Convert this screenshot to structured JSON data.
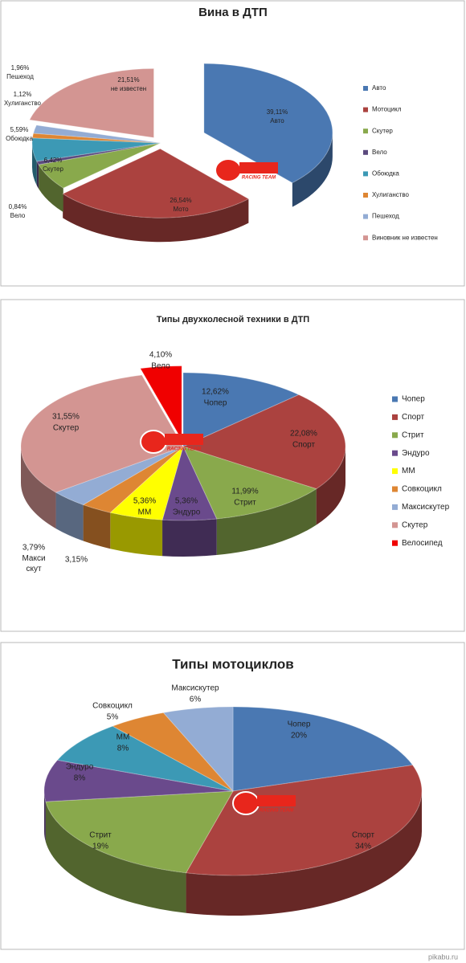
{
  "chart_data": [
    {
      "type": "pie",
      "title": "Вина в ДТП",
      "categories": [
        "Авто",
        "Мотоцикл",
        "Скутер",
        "Вело",
        "Обоюдка",
        "Хулиганство",
        "Пешеход",
        "Виновник не известен"
      ],
      "values": [
        39.11,
        26.54,
        6.42,
        0.84,
        5.59,
        1.12,
        1.96,
        21.51
      ],
      "value_labels": [
        "39,11%",
        "26,54%",
        "6,42%",
        "0,84%",
        "5,59%",
        "1,12%",
        "1,96%",
        "21,51%"
      ],
      "label_names": [
        "Авто",
        "Мото",
        "Скутер",
        "Вело",
        "Обоюдка",
        "Хулиганство",
        "Пешеход",
        "не известен"
      ],
      "colors": [
        "#4a78b2",
        "#ab423f",
        "#89a94c",
        "#5b4a7e",
        "#3c99b5",
        "#de8633",
        "#93acd4",
        "#d39592"
      ],
      "legend": "right"
    },
    {
      "type": "pie",
      "title": "Типы двухколесной техники в ДТП",
      "categories": [
        "Чопер",
        "Спорт",
        "Стрит",
        "Эндуро",
        "ММ",
        "Совкоцикл",
        "Максискутер",
        "Скутер",
        "Велосипед"
      ],
      "values": [
        12.62,
        22.08,
        11.99,
        5.36,
        5.36,
        3.15,
        3.79,
        31.55,
        4.1
      ],
      "value_labels": [
        "12,62%",
        "22,08%",
        "11,99%",
        "5,36%",
        "5,36%",
        "3,15%",
        "3,79%",
        "31,55%",
        "4,10%"
      ],
      "label_names": [
        "Чопер",
        "Спорт",
        "Стрит",
        "Эндуро",
        "ММ",
        null,
        "Макси скут",
        "Скутер",
        "Вело"
      ],
      "colors": [
        "#4a78b2",
        "#ab423f",
        "#89a94c",
        "#6a4a8c",
        "#ffff00",
        "#de8633",
        "#93acd4",
        "#d39592",
        "#f00000"
      ],
      "legend": "right"
    },
    {
      "type": "pie",
      "title": "Типы мотоциклов",
      "categories": [
        "Чопер",
        "Спорт",
        "Стрит",
        "Эндуро",
        "ММ",
        "Совкоцикл",
        "Максискутер"
      ],
      "values": [
        20,
        34,
        19,
        8,
        8,
        5,
        6
      ],
      "value_labels": [
        "20%",
        "34%",
        "19%",
        "8%",
        "8%",
        "5%",
        "6%"
      ],
      "label_names": [
        "Чопер",
        "Спорт",
        "Стрит",
        "Эндуро",
        "ММ",
        "Совкоцикл",
        "Максискутер"
      ],
      "colors": [
        "#4a78b2",
        "#ab423f",
        "#89a94c",
        "#6a4a8c",
        "#3c99b5",
        "#de8633",
        "#93acd4"
      ]
    }
  ],
  "logo": "RACING TEAM",
  "source": "pikabu.ru"
}
